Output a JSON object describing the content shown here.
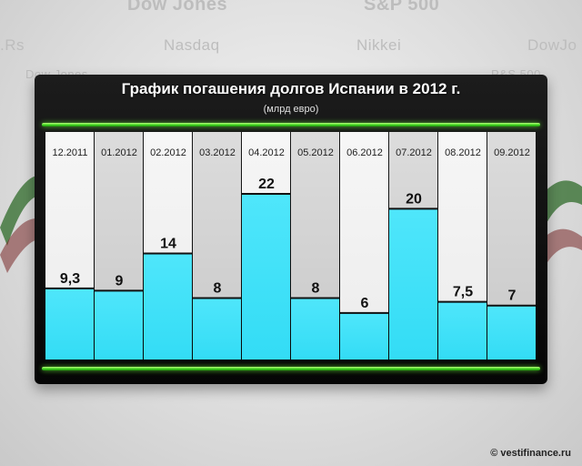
{
  "background": {
    "ticker_words": [
      "Dow Jones",
      "S&P 500",
      ".Rs",
      "Nasdaq",
      "Nikkei",
      "DowJo",
      "Dow Jones",
      "P&S 500"
    ]
  },
  "header": {
    "title": "График погашения долгов Испании в 2012 г.",
    "subtitle": "(млрд евро)"
  },
  "credit": "© vestifinance.ru",
  "colors": {
    "bar": "#33dcf5",
    "column_light": "#ececec",
    "column_dark": "#c9c9c9",
    "accent_green": "#3bd11e",
    "board": "#0a0a0a"
  },
  "chart_data": {
    "type": "bar",
    "title": "График погашения долгов Испании в 2012 г.",
    "subtitle": "(млрд евро)",
    "categories": [
      "12.2011",
      "01.2012",
      "02.2012",
      "03.2012",
      "04.2012",
      "05.2012",
      "06.2012",
      "07.2012",
      "08.2012",
      "09.2012"
    ],
    "values": [
      9.3,
      9,
      14,
      8,
      22,
      8,
      6,
      20,
      7.5,
      7
    ],
    "value_labels": [
      "9,3",
      "9",
      "14",
      "8",
      "22",
      "8",
      "6",
      "20",
      "7,5",
      "7"
    ],
    "xlabel": "",
    "ylabel": "",
    "ylim": [
      0,
      25
    ],
    "grid": false,
    "legend": "none"
  }
}
